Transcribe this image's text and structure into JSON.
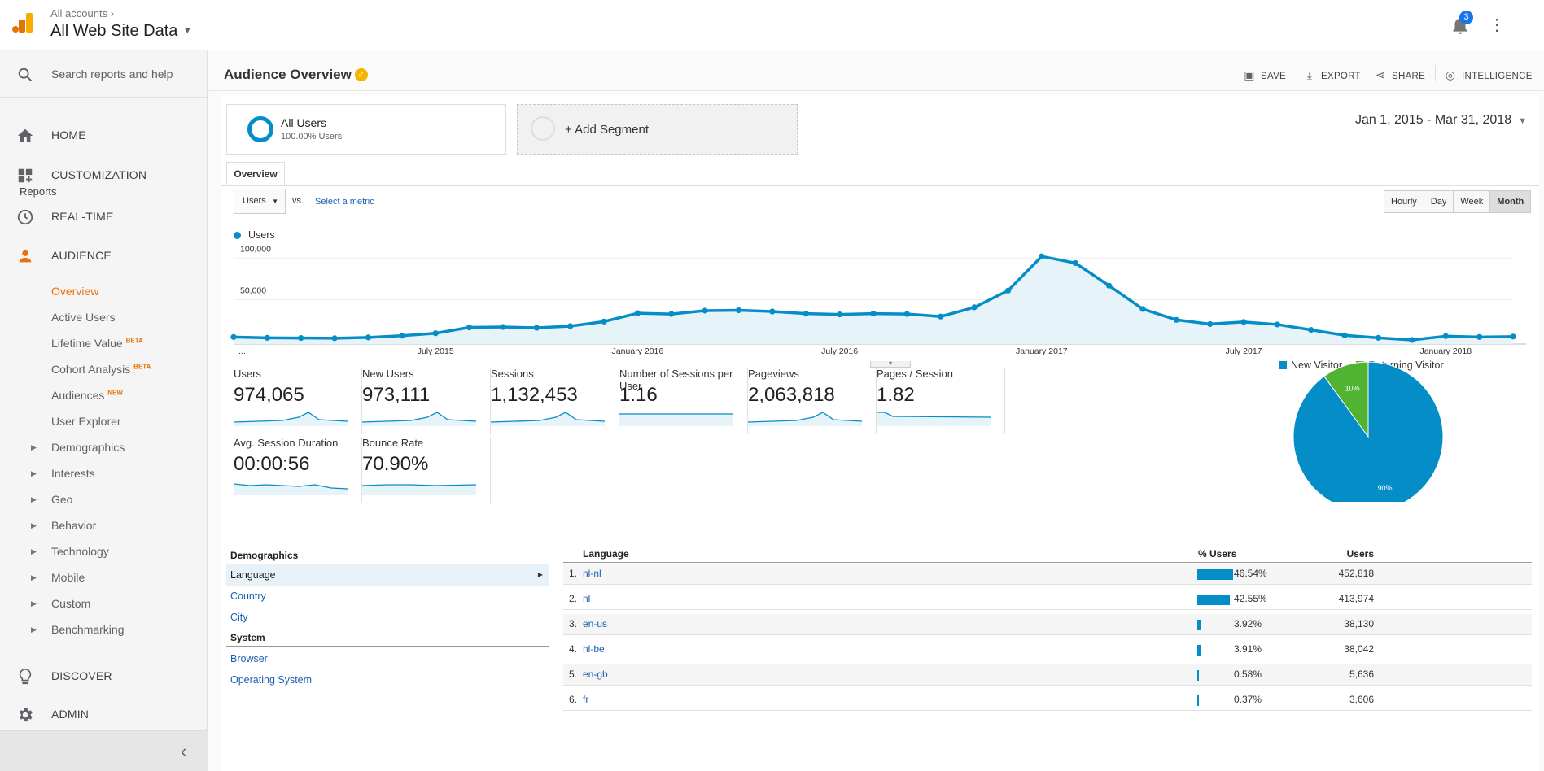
{
  "topbar": {
    "breadcrumb": "All accounts",
    "account": "All Web Site Data",
    "notifications": "3"
  },
  "sidebar": {
    "search_placeholder": "Search reports and help",
    "home": "HOME",
    "customization": "CUSTOMIZATION",
    "reports_label": "Reports",
    "realtime": "REAL-TIME",
    "audience": "AUDIENCE",
    "audience_items": [
      {
        "label": "Overview",
        "tag": ""
      },
      {
        "label": "Active Users",
        "tag": ""
      },
      {
        "label": "Lifetime Value",
        "tag": "BETA"
      },
      {
        "label": "Cohort Analysis",
        "tag": "BETA"
      },
      {
        "label": "Audiences",
        "tag": "NEW"
      },
      {
        "label": "User Explorer",
        "tag": ""
      },
      {
        "label": "Demographics",
        "tag": ""
      },
      {
        "label": "Interests",
        "tag": ""
      },
      {
        "label": "Geo",
        "tag": ""
      },
      {
        "label": "Behavior",
        "tag": ""
      },
      {
        "label": "Technology",
        "tag": ""
      },
      {
        "label": "Mobile",
        "tag": ""
      },
      {
        "label": "Custom",
        "tag": ""
      },
      {
        "label": "Benchmarking",
        "tag": ""
      }
    ],
    "discover": "DISCOVER",
    "admin": "ADMIN"
  },
  "header": {
    "title": "Audience Overview",
    "save": "SAVE",
    "export": "EXPORT",
    "share": "SHARE",
    "intelligence": "INTELLIGENCE"
  },
  "segments": {
    "all_users": "All Users",
    "all_users_pct": "100.00% Users",
    "add_segment": "+ Add Segment"
  },
  "date_range": "Jan 1, 2015 - Mar 31, 2018",
  "tabs": {
    "overview": "Overview"
  },
  "metric_select": {
    "value": "Users",
    "vs": "vs.",
    "select_metric": "Select a metric"
  },
  "periods": [
    "Hourly",
    "Day",
    "Week",
    "Month"
  ],
  "chart_data": {
    "type": "line",
    "series": [
      {
        "name": "Users",
        "values": [
          5500,
          4500,
          4300,
          4000,
          5000,
          7000,
          10000,
          17000,
          17500,
          16500,
          18500,
          24000,
          34000,
          33000,
          37000,
          37500,
          36000,
          33500,
          32500,
          33500,
          33000,
          30000,
          41000,
          61000,
          102000,
          94000,
          67000,
          39000,
          26000,
          21000,
          23500,
          20500,
          14000,
          7500,
          4500,
          2000,
          6500,
          5500,
          6000
        ]
      }
    ],
    "x_ticks": [
      "...",
      "July 2015",
      "January 2016",
      "July 2016",
      "January 2017",
      "July 2017",
      "January 2018"
    ],
    "y_ticks": [
      "100,000",
      "50,000"
    ],
    "ylim": [
      0,
      110000
    ],
    "color": "#058dc7"
  },
  "scorecards": [
    {
      "label": "Users",
      "value": "974,065"
    },
    {
      "label": "New Users",
      "value": "973,111"
    },
    {
      "label": "Sessions",
      "value": "1,132,453"
    },
    {
      "label": "Number of Sessions per User",
      "value": "1.16"
    },
    {
      "label": "Pageviews",
      "value": "2,063,818"
    },
    {
      "label": "Pages / Session",
      "value": "1.82"
    },
    {
      "label": "Avg. Session Duration",
      "value": "00:00:56"
    },
    {
      "label": "Bounce Rate",
      "value": "70.90%"
    }
  ],
  "pie": {
    "legend": [
      {
        "label": "New Visitor",
        "color": "#058dc7"
      },
      {
        "label": "Returning Visitor",
        "color": "#50b432"
      }
    ],
    "slices": [
      {
        "label": "90%",
        "value": 90
      },
      {
        "label": "10%",
        "value": 10
      }
    ]
  },
  "demographics": {
    "title": "Demographics",
    "items": [
      "Language",
      "Country",
      "City"
    ],
    "system_title": "System",
    "system_items": [
      "Browser",
      "Operating System"
    ]
  },
  "language_table": {
    "headers": {
      "language": "Language",
      "users": "Users",
      "pct": "% Users"
    },
    "rows": [
      {
        "n": "1.",
        "name": "nl-nl",
        "users": "452,818",
        "pct": "46.54%",
        "frac": 0.4654
      },
      {
        "n": "2.",
        "name": "nl",
        "users": "413,974",
        "pct": "42.55%",
        "frac": 0.4255
      },
      {
        "n": "3.",
        "name": "en-us",
        "users": "38,130",
        "pct": "3.92%",
        "frac": 0.0392
      },
      {
        "n": "4.",
        "name": "nl-be",
        "users": "38,042",
        "pct": "3.91%",
        "frac": 0.0391
      },
      {
        "n": "5.",
        "name": "en-gb",
        "users": "5,636",
        "pct": "0.58%",
        "frac": 0.0058
      },
      {
        "n": "6.",
        "name": "fr",
        "users": "3,606",
        "pct": "0.37%",
        "frac": 0.0037
      }
    ]
  }
}
